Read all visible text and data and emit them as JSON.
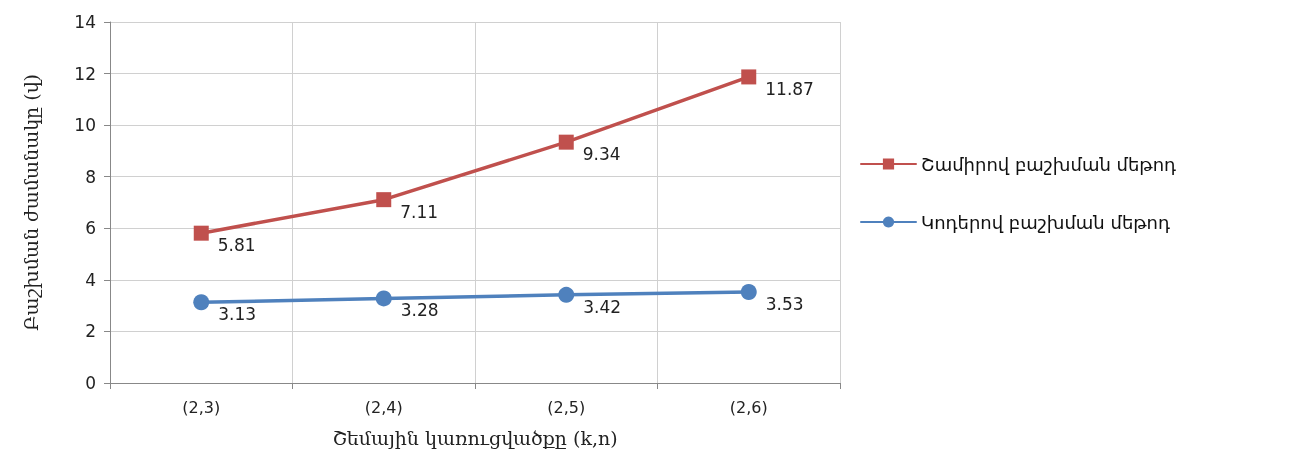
{
  "chart_data": {
    "type": "line",
    "xlabel": "Շեմային կառուցվածքը (k,n)",
    "ylabel": "Բաշխման ժամանակը (վ)",
    "categories": [
      "(2,3)",
      "(2,4)",
      "(2,5)",
      "(2,6)"
    ],
    "series": [
      {
        "name": "Շամիրով բաշխման մեթոդ",
        "color": "#c0504d",
        "marker": "square",
        "values": [
          5.81,
          7.11,
          9.34,
          11.87
        ]
      },
      {
        "name": "Կոդերով բաշխման մեթոդ",
        "color": "#4f81bd",
        "marker": "circle",
        "values": [
          3.13,
          3.28,
          3.42,
          3.53
        ]
      }
    ],
    "ylim": [
      0,
      14
    ],
    "yticks": [
      0,
      2,
      4,
      6,
      8,
      10,
      12,
      14
    ],
    "grid": true,
    "legend": "right",
    "data_labels": true,
    "line_style": "solid"
  }
}
